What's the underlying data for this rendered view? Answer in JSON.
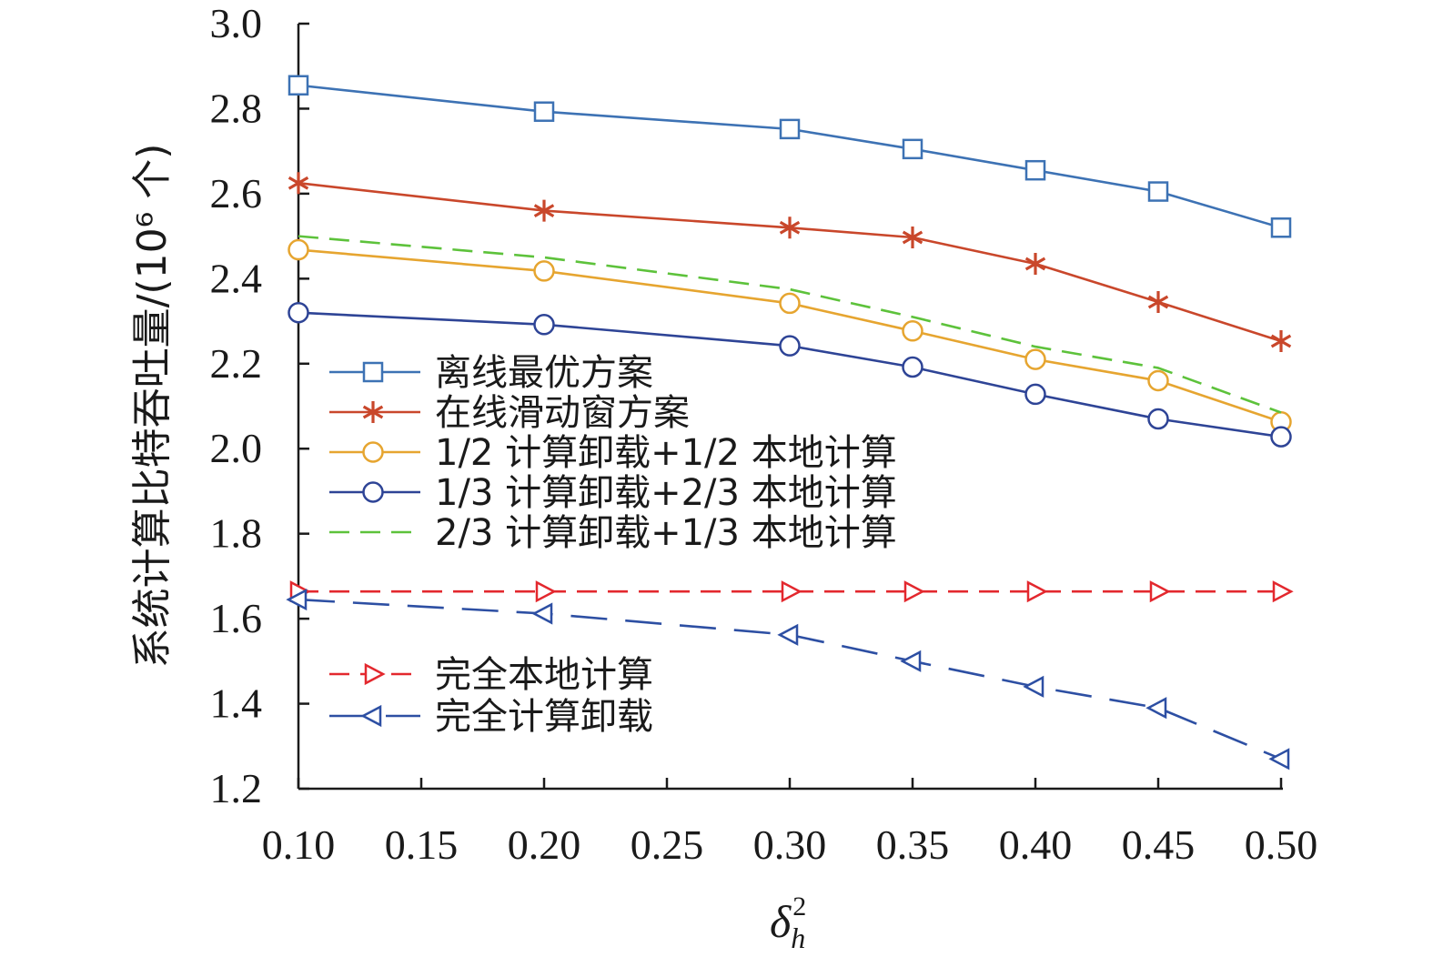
{
  "chart_data": {
    "type": "line",
    "title": "",
    "ylabel": "系统计算比特吞吐量/(10⁶ 个)",
    "xlabel": {
      "base": "δ",
      "sub": "h",
      "sup": "2"
    },
    "x": [
      0.1,
      0.2,
      0.3,
      0.35,
      0.4,
      0.45,
      0.5
    ],
    "x_tick_labels": [
      "0.10",
      "0.15",
      "0.20",
      "0.25",
      "0.30",
      "0.35",
      "0.40",
      "0.45",
      "0.50"
    ],
    "y_tick_labels": [
      "1.2",
      "1.4",
      "1.6",
      "1.8",
      "2.0",
      "2.2",
      "2.4",
      "2.6",
      "2.8",
      "3.0"
    ],
    "ylim": [
      1.2,
      3.0
    ],
    "grid": false,
    "legend_position": "center-left",
    "series": [
      {
        "name": "离线最优方案",
        "color": "#3d72b4",
        "marker": "square",
        "dash": "solid",
        "legend_group": 1,
        "values": [
          2.855,
          2.793,
          2.752,
          2.705,
          2.655,
          2.605,
          2.52
        ]
      },
      {
        "name": "在线滑动窗方案",
        "color": "#c9472b",
        "marker": "star",
        "dash": "solid",
        "legend_group": 1,
        "values": [
          2.625,
          2.56,
          2.52,
          2.497,
          2.435,
          2.345,
          2.253
        ]
      },
      {
        "name": "1/2 计算卸载+1/2 本地计算",
        "color": "#e6a530",
        "marker": "circle",
        "dash": "solid",
        "legend_group": 1,
        "values": [
          2.468,
          2.418,
          2.342,
          2.277,
          2.21,
          2.16,
          2.063
        ]
      },
      {
        "name": "1/3 计算卸载+2/3 本地计算",
        "color": "#2e4496",
        "marker": "circle",
        "dash": "solid",
        "legend_group": 1,
        "values": [
          2.32,
          2.292,
          2.242,
          2.192,
          2.128,
          2.07,
          2.028
        ]
      },
      {
        "name": "2/3 计算卸载+1/3 本地计算",
        "color": "#5dc23b",
        "marker": "none",
        "dash": "dashed",
        "legend_group": 1,
        "values": [
          2.5,
          2.45,
          2.375,
          2.31,
          2.24,
          2.19,
          2.085
        ]
      },
      {
        "name": "完全本地计算",
        "color": "#e3282e",
        "marker": "triangle-right",
        "dash": "dashed",
        "legend_group": 2,
        "values": [
          1.664,
          1.664,
          1.664,
          1.664,
          1.664,
          1.664,
          1.664
        ]
      },
      {
        "name": "完全计算卸载",
        "color": "#2d4fa3",
        "marker": "triangle-left",
        "dash": "longdash",
        "legend_group": 2,
        "values": [
          1.645,
          1.612,
          1.562,
          1.5,
          1.44,
          1.39,
          1.27
        ]
      }
    ]
  }
}
